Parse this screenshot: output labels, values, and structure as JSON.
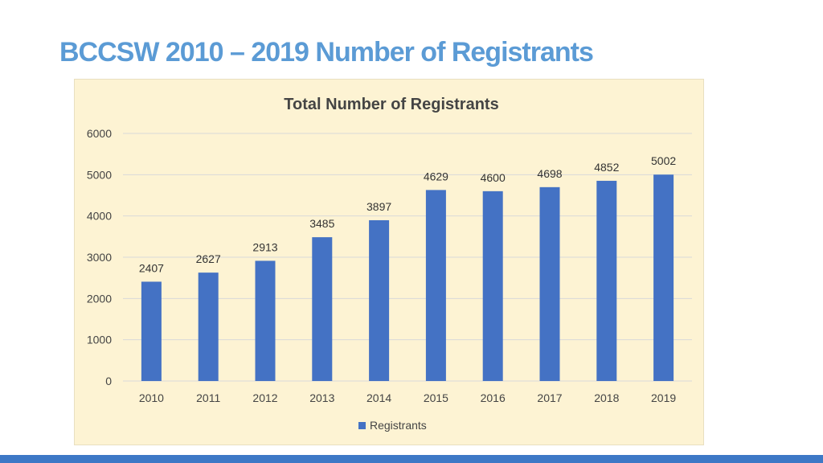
{
  "slide": {
    "title": "BCCSW 2010 – 2019 Number of Registrants"
  },
  "colors": {
    "title": "#5b9bd5",
    "bar": "#4472c4",
    "panel_background": "#fdf3d3",
    "gridline": "#d9d9d9",
    "bottom_bar": "#3d78c6"
  },
  "chart_data": {
    "type": "bar",
    "title": "Total Number of Registrants",
    "xlabel": "",
    "ylabel": "",
    "categories": [
      "2010",
      "2011",
      "2012",
      "2013",
      "2014",
      "2015",
      "2016",
      "2017",
      "2018",
      "2019"
    ],
    "series": [
      {
        "name": "Registrants",
        "values": [
          2407,
          2627,
          2913,
          3485,
          3897,
          4629,
          4600,
          4698,
          4852,
          5002
        ]
      }
    ],
    "ylim": [
      0,
      6000
    ],
    "yticks": [
      0,
      1000,
      2000,
      3000,
      4000,
      5000,
      6000
    ],
    "grid": true,
    "legend_position": "bottom",
    "data_labels": true
  }
}
